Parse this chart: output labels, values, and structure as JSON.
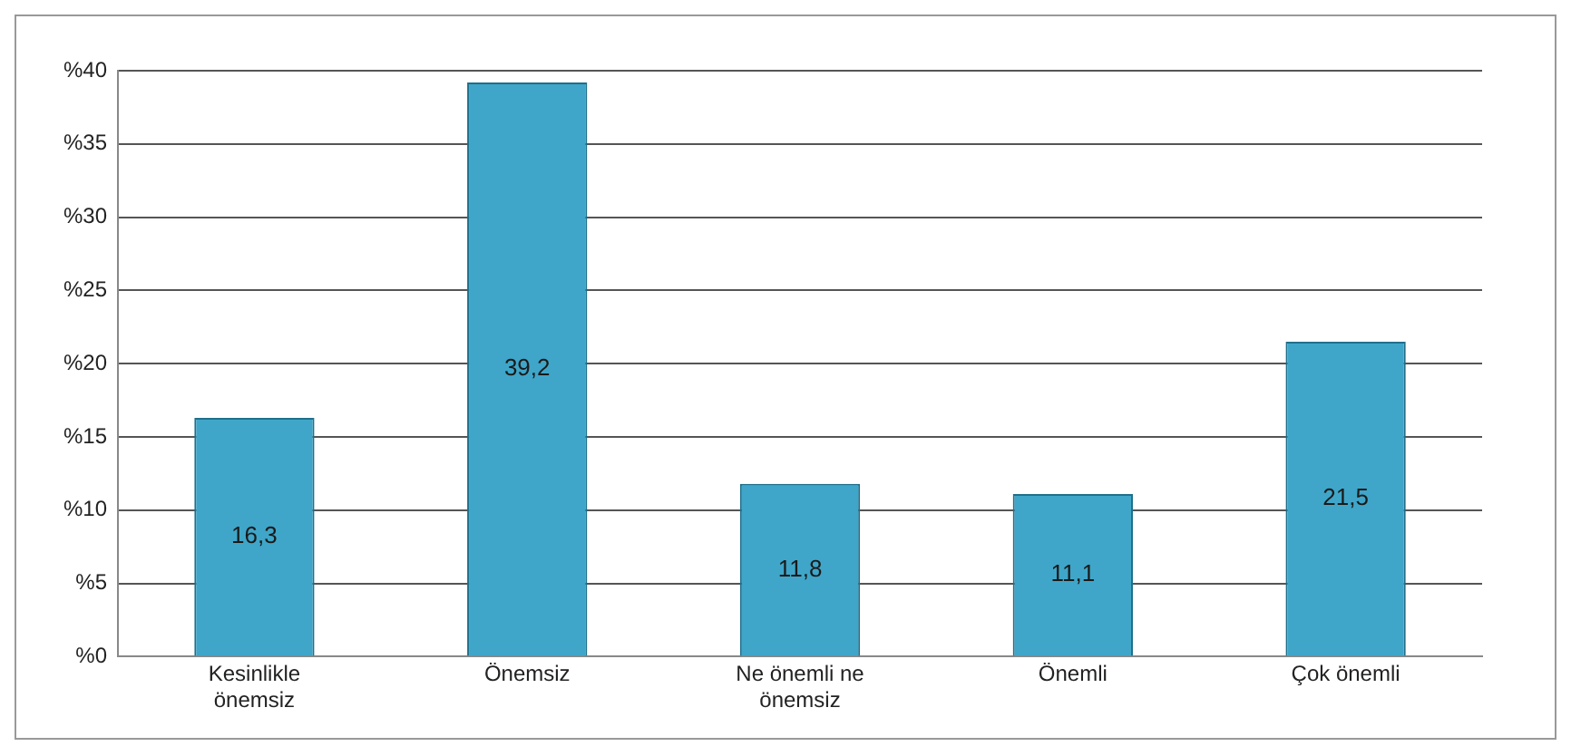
{
  "chart_data": {
    "type": "bar",
    "categories": [
      "Kesinlikle önemsiz",
      "Önemsiz",
      "Ne önemli ne önemsiz",
      "Önemli",
      "Çok önemli"
    ],
    "values": [
      16.3,
      39.2,
      11.8,
      11.1,
      21.5
    ],
    "value_labels": [
      "16,3",
      "39,2",
      "11,8",
      "11,1",
      "21,5"
    ],
    "color": "#3fa6c9",
    "ylim": [
      0,
      40
    ],
    "yticks": [
      {
        "value": 0,
        "label": "%0"
      },
      {
        "value": 5,
        "label": "%5"
      },
      {
        "value": 10,
        "label": "%10"
      },
      {
        "value": 15,
        "label": "%15"
      },
      {
        "value": 20,
        "label": "%20"
      },
      {
        "value": 25,
        "label": "%25"
      },
      {
        "value": 30,
        "label": "%30"
      },
      {
        "value": 35,
        "label": "%35"
      },
      {
        "value": 40,
        "label": "%40"
      }
    ],
    "grid": "y",
    "legend": false
  }
}
